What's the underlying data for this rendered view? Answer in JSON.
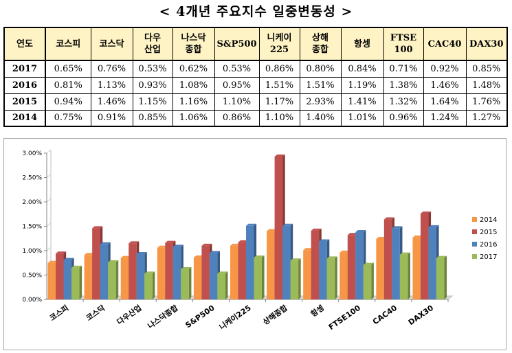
{
  "title": "< 4개년 주요지수 일중변동성 >",
  "table": {
    "headers": [
      "연도",
      "코스피",
      "코스닥",
      "다우\n산업",
      "나스닥\n종합",
      "S&P500",
      "니케이\n225",
      "상해\n종합",
      "항셍",
      "FTSE\n100",
      "CAC40",
      "DAX30"
    ],
    "rows": [
      {
        "year": "2017",
        "cells": [
          "0.65%",
          "0.76%",
          "0.53%",
          "0.62%",
          "0.53%",
          "0.86%",
          "0.80%",
          "0.84%",
          "0.71%",
          "0.92%",
          "0.85%"
        ]
      },
      {
        "year": "2016",
        "cells": [
          "0.81%",
          "1.13%",
          "0.93%",
          "1.08%",
          "0.95%",
          "1.51%",
          "1.51%",
          "1.19%",
          "1.38%",
          "1.46%",
          "1.48%"
        ]
      },
      {
        "year": "2015",
        "cells": [
          "0.94%",
          "1.46%",
          "1.15%",
          "1.16%",
          "1.10%",
          "1.17%",
          "2.93%",
          "1.41%",
          "1.32%",
          "1.64%",
          "1.76%"
        ]
      },
      {
        "year": "2014",
        "cells": [
          "0.75%",
          "0.91%",
          "0.85%",
          "1.06%",
          "0.86%",
          "1.10%",
          "1.40%",
          "1.01%",
          "0.96%",
          "1.24%",
          "1.27%"
        ]
      }
    ]
  },
  "chart_data": {
    "type": "bar",
    "categories": [
      "코스피",
      "코스닥",
      "다우산업",
      "나스닥종합",
      "S&P500",
      "니케이225",
      "상해종합",
      "항셍",
      "FTSE100",
      "CAC40",
      "DAX30"
    ],
    "series": [
      {
        "name": "2014",
        "color": "#f79646",
        "values": [
          0.75,
          0.91,
          0.85,
          1.06,
          0.86,
          1.1,
          1.4,
          1.01,
          0.96,
          1.24,
          1.27
        ]
      },
      {
        "name": "2015",
        "color": "#c0504d",
        "values": [
          0.94,
          1.46,
          1.15,
          1.16,
          1.1,
          1.17,
          2.93,
          1.41,
          1.32,
          1.64,
          1.76
        ]
      },
      {
        "name": "2016",
        "color": "#4f81bd",
        "values": [
          0.81,
          1.13,
          0.93,
          1.08,
          0.95,
          1.51,
          1.51,
          1.19,
          1.38,
          1.46,
          1.48
        ]
      },
      {
        "name": "2017",
        "color": "#9bbb59",
        "values": [
          0.65,
          0.76,
          0.53,
          0.62,
          0.53,
          0.86,
          0.8,
          0.84,
          0.71,
          0.92,
          0.85
        ]
      }
    ],
    "yticks": [
      "0.00%",
      "0.50%",
      "1.00%",
      "1.50%",
      "2.00%",
      "2.50%",
      "3.00%"
    ],
    "ylim": [
      0,
      3.0
    ],
    "legend_position": "right",
    "style": "3d-clustered-column"
  }
}
